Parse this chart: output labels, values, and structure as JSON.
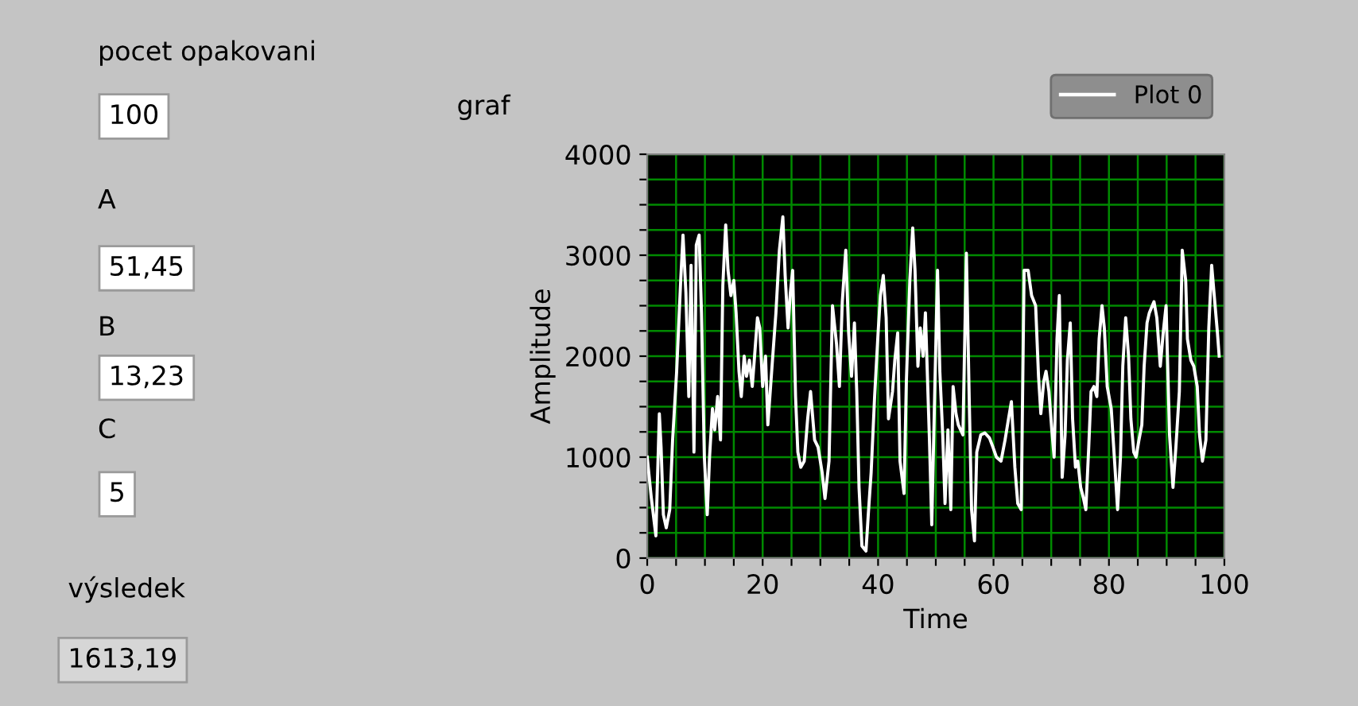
{
  "chart_data": {
    "type": "line",
    "title": "graf",
    "xlabel": "Time",
    "ylabel": "Amplitude",
    "xlim": [
      0,
      100
    ],
    "xticks": [
      0,
      {
        "value": 5,
        "label": null
      },
      {
        "value": 10,
        "label": null
      },
      {
        "value": 15,
        "label": null
      },
      20,
      {
        "value": 25,
        "label": null
      },
      {
        "value": 30,
        "label": null
      },
      {
        "value": 35,
        "label": null
      },
      40,
      {
        "value": 45,
        "label": null
      },
      {
        "value": 50,
        "label": null
      },
      {
        "value": 55,
        "label": null
      },
      60,
      {
        "value": 65,
        "label": null
      },
      {
        "value": 70,
        "label": null
      },
      {
        "value": 75,
        "label": null
      },
      80,
      {
        "value": 85,
        "label": null
      },
      {
        "value": 90,
        "label": null
      },
      {
        "value": 95,
        "label": null
      },
      100
    ],
    "ylim": [
      0,
      4000
    ],
    "yticks": [
      0,
      {
        "value": 250,
        "label": null
      },
      {
        "value": 500,
        "label": null
      },
      {
        "value": 750,
        "label": null
      },
      1000,
      {
        "value": 1250,
        "label": null
      },
      {
        "value": 1500,
        "label": null
      },
      {
        "value": 1750,
        "label": null
      },
      2000,
      {
        "value": 2250,
        "label": null
      },
      {
        "value": 2500,
        "label": null
      },
      {
        "value": 2750,
        "label": null
      },
      3000,
      {
        "value": 3250,
        "label": null
      },
      {
        "value": 3500,
        "label": null
      },
      {
        "value": 3750,
        "label": null
      },
      4000
    ],
    "grid": true,
    "legend": "top right",
    "marker": "none",
    "line_style": "solid",
    "annotations": [
      "pocet opakovani",
      "100",
      "A",
      "51,45",
      "B",
      "13,23",
      "C",
      "5",
      "výsledek",
      "1613,19"
    ],
    "series": [
      {
        "name": "Plot 0",
        "color": "#ffffff",
        "x": [
          0.0,
          0.7,
          1.5,
          2.1,
          2.4,
          2.8,
          3.3,
          3.9,
          4.4,
          5.1,
          5.8,
          6.2,
          6.7,
          7.2,
          7.6,
          8.1,
          8.5,
          9.0,
          9.4,
          9.9,
          10.4,
          10.8,
          11.3,
          11.7,
          12.2,
          12.7,
          13.1,
          13.6,
          14.0,
          14.5,
          15.0,
          15.4,
          15.9,
          16.3,
          16.8,
          17.2,
          17.7,
          18.2,
          18.6,
          19.1,
          19.5,
          20.0,
          20.5,
          20.9,
          21.7,
          22.3,
          22.9,
          23.5,
          23.9,
          24.4,
          24.8,
          25.2,
          25.7,
          26.1,
          26.6,
          27.2,
          27.8,
          28.3,
          29.0,
          29.6,
          30.3,
          30.8,
          31.5,
          32.1,
          32.8,
          33.3,
          33.8,
          34.4,
          34.9,
          35.4,
          35.9,
          36.3,
          36.7,
          37.2,
          37.9,
          38.3,
          38.8,
          39.4,
          40.0,
          40.4,
          40.9,
          41.4,
          41.8,
          42.5,
          42.9,
          43.4,
          43.8,
          44.5,
          44.9,
          45.5,
          46.0,
          46.4,
          46.9,
          47.3,
          47.8,
          48.2,
          48.9,
          49.3,
          49.8,
          50.3,
          50.7,
          51.2,
          51.6,
          52.1,
          52.6,
          53.0,
          53.5,
          53.9,
          54.7,
          55.3,
          55.8,
          56.2,
          56.7,
          57.1,
          57.8,
          58.5,
          59.3,
          59.9,
          60.5,
          61.3,
          62.0,
          62.6,
          63.1,
          63.7,
          64.2,
          64.8,
          65.3,
          66.0,
          66.6,
          67.3,
          67.8,
          68.2,
          68.7,
          69.1,
          69.6,
          70.1,
          70.5,
          71.0,
          71.4,
          71.9,
          72.4,
          72.8,
          73.3,
          73.7,
          74.2,
          74.6,
          75.1,
          75.6,
          76.0,
          76.5,
          76.9,
          77.4,
          77.9,
          78.3,
          78.8,
          79.2,
          79.7,
          80.4,
          81.1,
          81.5,
          82.0,
          82.4,
          82.9,
          83.4,
          83.8,
          84.3,
          84.7,
          85.2,
          85.7,
          86.1,
          86.6,
          87.0,
          87.8,
          88.3,
          88.9,
          89.4,
          89.9,
          90.5,
          91.1,
          91.6,
          92.2,
          92.7,
          93.3,
          93.6,
          94.2,
          94.7,
          95.3,
          95.7,
          96.2,
          96.8,
          97.3,
          97.8,
          98.2,
          98.8,
          99.1
        ],
        "values": [
          1000,
          600,
          220,
          1430,
          1100,
          430,
          300,
          480,
          1170,
          1850,
          2750,
          3200,
          2630,
          1600,
          2900,
          1050,
          3100,
          3200,
          2430,
          1000,
          430,
          1000,
          1480,
          1270,
          1600,
          1170,
          2700,
          3300,
          2850,
          2600,
          2750,
          2430,
          1850,
          1600,
          2000,
          1800,
          1960,
          1700,
          2000,
          2380,
          2280,
          1700,
          2000,
          1320,
          1960,
          2430,
          3050,
          3380,
          2800,
          2280,
          2630,
          2850,
          1600,
          1050,
          900,
          960,
          1380,
          1650,
          1170,
          1100,
          850,
          590,
          960,
          2500,
          2120,
          1700,
          2540,
          3050,
          2230,
          1800,
          2330,
          1650,
          700,
          120,
          70,
          430,
          850,
          1600,
          2230,
          2600,
          2800,
          2380,
          1380,
          1650,
          1960,
          2230,
          960,
          640,
          1750,
          2750,
          3270,
          2850,
          1900,
          2280,
          2000,
          2430,
          1170,
          330,
          1600,
          2850,
          1850,
          1220,
          540,
          1270,
          480,
          1700,
          1430,
          1320,
          1220,
          3020,
          1550,
          480,
          170,
          1050,
          1220,
          1240,
          1190,
          1100,
          1000,
          960,
          1170,
          1380,
          1550,
          900,
          540,
          480,
          2850,
          2850,
          2600,
          2500,
          1800,
          1430,
          1750,
          1850,
          1650,
          1270,
          1000,
          2170,
          2600,
          800,
          1220,
          1960,
          2330,
          1380,
          900,
          960,
          700,
          590,
          480,
          1100,
          1650,
          1700,
          1600,
          2170,
          2500,
          2280,
          1700,
          1480,
          850,
          480,
          1000,
          1900,
          2380,
          2000,
          1380,
          1050,
          1000,
          1170,
          1320,
          1900,
          2330,
          2430,
          2540,
          2380,
          1900,
          2230,
          2500,
          1220,
          700,
          1100,
          1650,
          3050,
          2750,
          2170,
          1960,
          1900,
          1700,
          1220,
          960,
          1170,
          2280,
          2900,
          2630,
          2230,
          2000
        ]
      }
    ]
  }
}
